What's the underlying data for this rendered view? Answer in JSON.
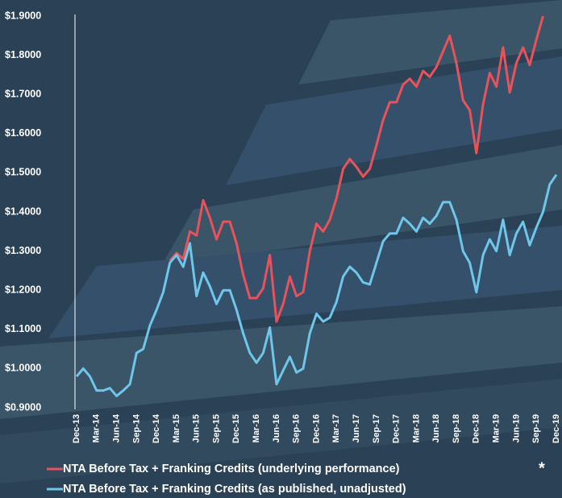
{
  "chart_data": {
    "type": "line",
    "categories": [
      "Dec-13",
      null,
      null,
      "Mar-14",
      null,
      null,
      "Jun-14",
      null,
      null,
      "Sep-14",
      null,
      null,
      "Dec-14",
      null,
      null,
      "Mar-15",
      null,
      null,
      "Jun-15",
      null,
      null,
      "Sep-15",
      null,
      null,
      "Dec-15",
      null,
      null,
      "Mar-16",
      null,
      null,
      "Jun-16",
      null,
      null,
      "Sep-16",
      null,
      null,
      "Dec-16",
      null,
      null,
      "Mar-17",
      null,
      null,
      "Jun-17",
      null,
      null,
      "Sep-17",
      null,
      null,
      "Dec-17",
      null,
      null,
      "Mar-18",
      null,
      null,
      "Jun-18",
      null,
      null,
      "Sep-18",
      null,
      null,
      "Dec-18",
      null,
      null,
      "Mar-19",
      null,
      null,
      "Jun-19",
      null,
      null,
      "Sep-19",
      null,
      null,
      "Dec-19"
    ],
    "series": [
      {
        "name": "NTA Before Tax + Franking Credits (underlying performance)",
        "color": "#e8525a",
        "values": [
          null,
          null,
          null,
          null,
          null,
          null,
          null,
          null,
          null,
          null,
          null,
          null,
          null,
          null,
          1.275,
          1.295,
          1.28,
          1.35,
          1.34,
          1.43,
          1.385,
          1.33,
          1.375,
          1.375,
          1.32,
          1.24,
          1.18,
          1.18,
          1.205,
          1.29,
          1.12,
          1.165,
          1.235,
          1.185,
          1.195,
          1.3,
          1.37,
          1.35,
          1.38,
          1.435,
          1.51,
          1.535,
          1.515,
          1.49,
          1.51,
          1.57,
          1.635,
          1.68,
          1.68,
          1.725,
          1.74,
          1.72,
          1.76,
          1.745,
          1.77,
          1.81,
          1.85,
          1.78,
          1.685,
          1.66,
          1.55,
          1.675,
          1.755,
          1.72,
          1.82,
          1.705,
          1.78,
          1.82,
          1.775,
          1.84,
          1.9,
          null,
          null
        ]
      },
      {
        "name": "NTA Before Tax + Franking Credits (as published, unadjusted)",
        "color": "#6ec6ea",
        "values": [
          0.98,
          1.0,
          0.98,
          0.944,
          0.944,
          0.95,
          0.93,
          0.944,
          0.96,
          1.04,
          1.05,
          1.11,
          1.15,
          1.195,
          1.27,
          1.29,
          1.26,
          1.32,
          1.185,
          1.245,
          1.21,
          1.165,
          1.2,
          1.2,
          1.15,
          1.09,
          1.04,
          1.015,
          1.04,
          1.105,
          0.96,
          0.995,
          1.03,
          0.99,
          1.0,
          1.09,
          1.14,
          1.12,
          1.13,
          1.17,
          1.235,
          1.26,
          1.245,
          1.22,
          1.215,
          1.27,
          1.325,
          1.345,
          1.345,
          1.385,
          1.37,
          1.35,
          1.385,
          1.37,
          1.39,
          1.425,
          1.425,
          1.38,
          1.3,
          1.27,
          1.195,
          1.29,
          1.33,
          1.3,
          1.38,
          1.29,
          1.345,
          1.375,
          1.315,
          1.36,
          1.4,
          1.47,
          1.495
        ]
      }
    ],
    "legend_note": "*",
    "ylim": [
      0.9,
      1.9
    ],
    "yticks": [
      {
        "value": 0.9,
        "label": "$0.9000"
      },
      {
        "value": 1.0,
        "label": "$1.0000"
      },
      {
        "value": 1.1,
        "label": "$1.1000"
      },
      {
        "value": 1.2,
        "label": "$1.2000"
      },
      {
        "value": 1.3,
        "label": "$1.3000"
      },
      {
        "value": 1.4,
        "label": "$1.4000"
      },
      {
        "value": 1.5,
        "label": "$1.5000"
      },
      {
        "value": 1.6,
        "label": "$1.6000"
      },
      {
        "value": 1.7,
        "label": "$1.7000"
      },
      {
        "value": 1.8,
        "label": "$1.8000"
      },
      {
        "value": 1.9,
        "label": "$1.9000"
      }
    ],
    "grid": false
  }
}
